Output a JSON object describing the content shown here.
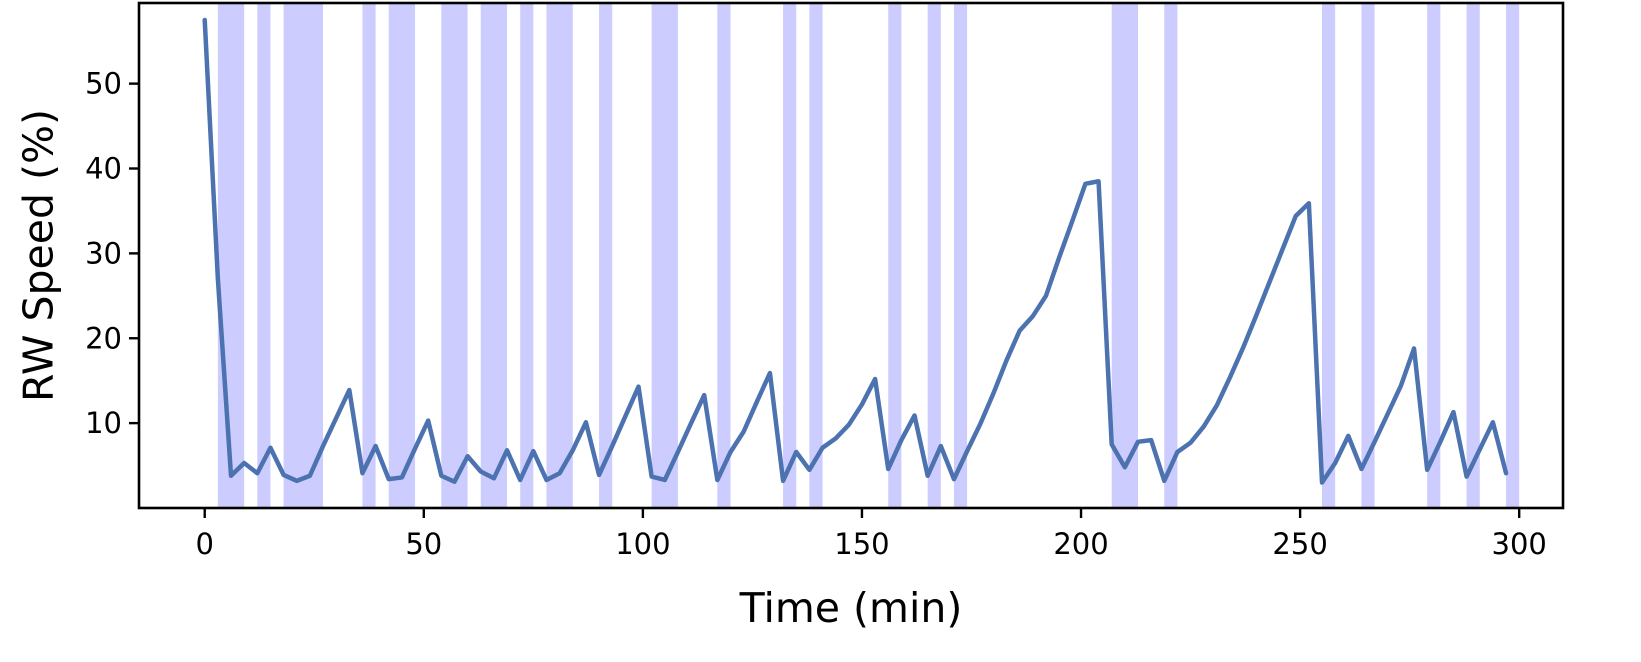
{
  "chart_data": {
    "type": "line",
    "xlabel": "Time (min)",
    "ylabel": "RW Speed (%)",
    "xlim": [
      -15,
      310
    ],
    "ylim": [
      0,
      59.5
    ],
    "xticks": [
      0,
      50,
      100,
      150,
      200,
      250,
      300
    ],
    "yticks": [
      10,
      20,
      30,
      40,
      50
    ],
    "grid": false,
    "line_color": "#4c72b0",
    "band_color": "#ccccff",
    "shaded_intervals": [
      [
        3,
        9
      ],
      [
        12,
        15
      ],
      [
        18,
        27
      ],
      [
        36,
        39
      ],
      [
        42,
        48
      ],
      [
        54,
        60
      ],
      [
        63,
        69
      ],
      [
        72,
        75
      ],
      [
        78,
        84
      ],
      [
        90,
        93
      ],
      [
        102,
        108
      ],
      [
        117,
        120
      ],
      [
        132,
        135
      ],
      [
        138,
        141
      ],
      [
        156,
        159
      ],
      [
        165,
        168
      ],
      [
        171,
        174
      ],
      [
        207,
        213
      ],
      [
        219,
        222
      ],
      [
        255,
        258
      ],
      [
        264,
        267
      ],
      [
        279,
        282
      ],
      [
        288,
        291
      ],
      [
        297,
        300
      ]
    ],
    "series": [
      {
        "x": [
          0,
          3,
          6,
          9,
          12,
          15,
          18,
          21,
          24,
          27,
          30,
          33,
          36,
          39,
          42,
          45,
          48,
          51,
          54,
          57,
          60,
          63,
          66,
          69,
          72,
          75,
          78,
          81,
          84,
          87,
          90,
          93,
          96,
          99,
          102,
          105,
          108,
          111,
          114,
          117,
          120,
          123,
          126,
          129,
          132,
          135,
          138,
          141,
          144,
          147,
          150,
          153,
          156,
          159,
          162,
          165,
          168,
          171,
          174,
          177,
          180,
          183,
          186,
          189,
          192,
          195,
          198,
          201,
          204,
          207,
          210,
          213,
          216,
          219,
          222,
          225,
          228,
          231,
          234,
          237,
          240,
          243,
          246,
          249,
          252,
          255,
          258,
          261,
          264,
          267,
          270,
          273,
          276,
          279,
          282,
          285,
          288,
          291,
          294,
          297
        ],
        "y": [
          57.5,
          27,
          3.8,
          5.3,
          4.1,
          7.1,
          3.9,
          3.2,
          3.8,
          7.3,
          10.6,
          13.9,
          4.1,
          7.3,
          3.4,
          3.6,
          7.0,
          10.3,
          3.8,
          3.1,
          6.1,
          4.3,
          3.5,
          6.8,
          3.3,
          6.7,
          3.3,
          4.1,
          6.8,
          10.1,
          3.9,
          7.3,
          10.8,
          14.3,
          3.7,
          3.3,
          6.6,
          10.0,
          13.3,
          3.3,
          6.6,
          9.0,
          12.5,
          15.9,
          3.2,
          6.6,
          4.5,
          7.1,
          8.2,
          9.8,
          12.2,
          15.2,
          4.6,
          8.0,
          10.9,
          3.8,
          7.3,
          3.4,
          6.7,
          9.9,
          13.5,
          17.4,
          20.9,
          22.6,
          25.0,
          29.5,
          33.8,
          38.2,
          38.5,
          7.5,
          4.8,
          7.8,
          8.0,
          3.2,
          6.6,
          7.7,
          9.6,
          12.1,
          15.4,
          18.9,
          22.7,
          26.6,
          30.5,
          34.4,
          35.9,
          3.0,
          5.3,
          8.5,
          4.6,
          7.8,
          11.1,
          14.4,
          18.8,
          4.5,
          7.8,
          11.3,
          3.7,
          6.9,
          10.1,
          4.1
        ]
      }
    ]
  }
}
